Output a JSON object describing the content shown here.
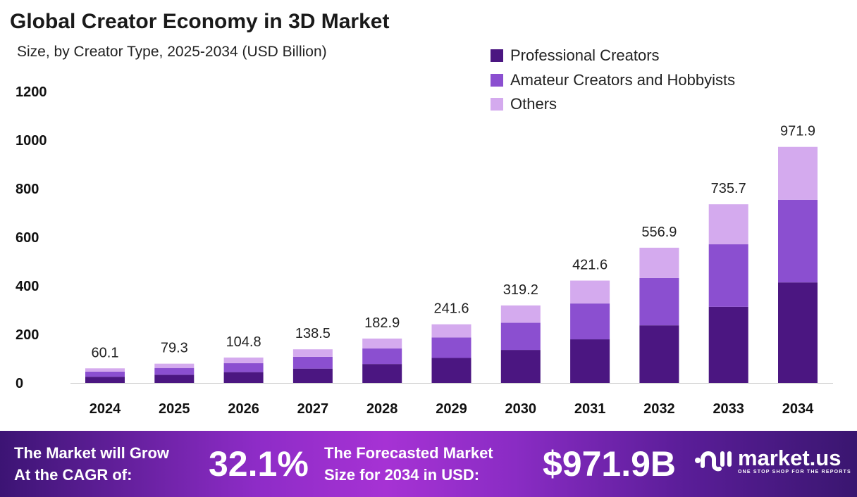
{
  "chart_data": {
    "type": "bar",
    "stacked": true,
    "title": "Global Creator Economy in 3D Market",
    "subtitle": "Size, by Creator Type, 2025-2034 (USD Billion)",
    "categories": [
      "2024",
      "2025",
      "2026",
      "2027",
      "2028",
      "2029",
      "2030",
      "2031",
      "2032",
      "2033",
      "2034"
    ],
    "series": [
      {
        "name": "Professional Creators",
        "color": "#4b1681",
        "values": [
          25.6,
          33.8,
          44.6,
          59.0,
          77.9,
          102.9,
          136.0,
          179.6,
          237.2,
          313.4,
          414.0
        ]
      },
      {
        "name": "Amateur Creators and Hobbyists",
        "color": "#8b4fd0",
        "values": [
          21.0,
          27.8,
          36.7,
          48.5,
          64.0,
          84.6,
          111.7,
          147.6,
          194.9,
          257.5,
          340.2
        ]
      },
      {
        "name": "Others",
        "color": "#d4aaee",
        "values": [
          13.5,
          17.7,
          23.5,
          31.0,
          41.0,
          54.1,
          71.5,
          94.4,
          124.8,
          164.8,
          217.7
        ]
      }
    ],
    "totals": [
      "60.1",
      "79.3",
      "104.8",
      "138.5",
      "182.9",
      "241.6",
      "319.2",
      "421.6",
      "556.9",
      "735.7",
      "971.9"
    ],
    "yticks": [
      "0",
      "200",
      "400",
      "600",
      "800",
      "1000",
      "1200"
    ],
    "ylim": [
      0,
      1200
    ],
    "grid": false,
    "legend_position": "top-right"
  },
  "footer": {
    "cagr_label_1": "The Market will Grow",
    "cagr_label_2": "At the CAGR of:",
    "cagr_value": "32.1%",
    "forecast_label_1": "The Forecasted Market",
    "forecast_label_2": "Size for 2034 in USD:",
    "forecast_value": "$971.9B",
    "logo_name": "market.us",
    "logo_tagline": "ONE STOP SHOP FOR THE REPORTS"
  }
}
